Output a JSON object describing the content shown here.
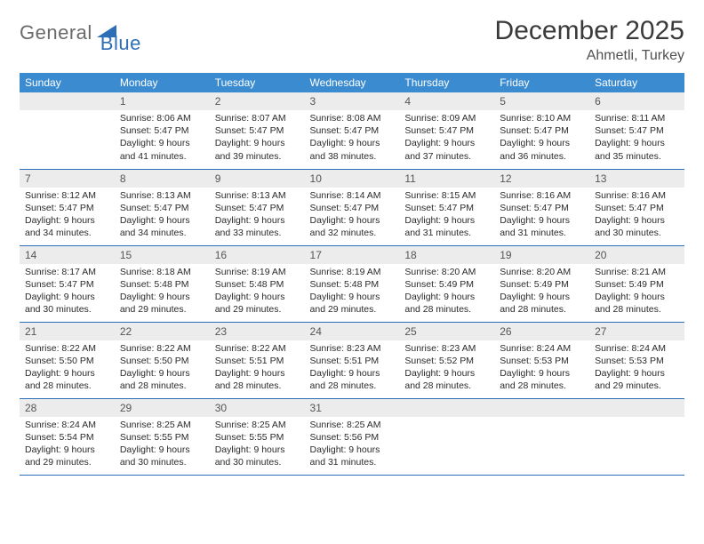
{
  "logo": {
    "text1": "General",
    "text2": "Blue"
  },
  "title": "December 2025",
  "location": "Ahmetli, Turkey",
  "colors": {
    "header_bg": "#3b8bd0",
    "header_fg": "#ffffff",
    "daynum_bg": "#ececec",
    "daynum_fg": "#555555",
    "border": "#2d6fb6",
    "logo_gray": "#6a6a6a",
    "logo_blue": "#2d6fb6",
    "shape_fill": "#2d6fb6"
  },
  "day_headers": [
    "Sunday",
    "Monday",
    "Tuesday",
    "Wednesday",
    "Thursday",
    "Friday",
    "Saturday"
  ],
  "weeks": [
    [
      {
        "n": "",
        "lines": []
      },
      {
        "n": "1",
        "lines": [
          "Sunrise: 8:06 AM",
          "Sunset: 5:47 PM",
          "Daylight: 9 hours",
          "and 41 minutes."
        ]
      },
      {
        "n": "2",
        "lines": [
          "Sunrise: 8:07 AM",
          "Sunset: 5:47 PM",
          "Daylight: 9 hours",
          "and 39 minutes."
        ]
      },
      {
        "n": "3",
        "lines": [
          "Sunrise: 8:08 AM",
          "Sunset: 5:47 PM",
          "Daylight: 9 hours",
          "and 38 minutes."
        ]
      },
      {
        "n": "4",
        "lines": [
          "Sunrise: 8:09 AM",
          "Sunset: 5:47 PM",
          "Daylight: 9 hours",
          "and 37 minutes."
        ]
      },
      {
        "n": "5",
        "lines": [
          "Sunrise: 8:10 AM",
          "Sunset: 5:47 PM",
          "Daylight: 9 hours",
          "and 36 minutes."
        ]
      },
      {
        "n": "6",
        "lines": [
          "Sunrise: 8:11 AM",
          "Sunset: 5:47 PM",
          "Daylight: 9 hours",
          "and 35 minutes."
        ]
      }
    ],
    [
      {
        "n": "7",
        "lines": [
          "Sunrise: 8:12 AM",
          "Sunset: 5:47 PM",
          "Daylight: 9 hours",
          "and 34 minutes."
        ]
      },
      {
        "n": "8",
        "lines": [
          "Sunrise: 8:13 AM",
          "Sunset: 5:47 PM",
          "Daylight: 9 hours",
          "and 34 minutes."
        ]
      },
      {
        "n": "9",
        "lines": [
          "Sunrise: 8:13 AM",
          "Sunset: 5:47 PM",
          "Daylight: 9 hours",
          "and 33 minutes."
        ]
      },
      {
        "n": "10",
        "lines": [
          "Sunrise: 8:14 AM",
          "Sunset: 5:47 PM",
          "Daylight: 9 hours",
          "and 32 minutes."
        ]
      },
      {
        "n": "11",
        "lines": [
          "Sunrise: 8:15 AM",
          "Sunset: 5:47 PM",
          "Daylight: 9 hours",
          "and 31 minutes."
        ]
      },
      {
        "n": "12",
        "lines": [
          "Sunrise: 8:16 AM",
          "Sunset: 5:47 PM",
          "Daylight: 9 hours",
          "and 31 minutes."
        ]
      },
      {
        "n": "13",
        "lines": [
          "Sunrise: 8:16 AM",
          "Sunset: 5:47 PM",
          "Daylight: 9 hours",
          "and 30 minutes."
        ]
      }
    ],
    [
      {
        "n": "14",
        "lines": [
          "Sunrise: 8:17 AM",
          "Sunset: 5:47 PM",
          "Daylight: 9 hours",
          "and 30 minutes."
        ]
      },
      {
        "n": "15",
        "lines": [
          "Sunrise: 8:18 AM",
          "Sunset: 5:48 PM",
          "Daylight: 9 hours",
          "and 29 minutes."
        ]
      },
      {
        "n": "16",
        "lines": [
          "Sunrise: 8:19 AM",
          "Sunset: 5:48 PM",
          "Daylight: 9 hours",
          "and 29 minutes."
        ]
      },
      {
        "n": "17",
        "lines": [
          "Sunrise: 8:19 AM",
          "Sunset: 5:48 PM",
          "Daylight: 9 hours",
          "and 29 minutes."
        ]
      },
      {
        "n": "18",
        "lines": [
          "Sunrise: 8:20 AM",
          "Sunset: 5:49 PM",
          "Daylight: 9 hours",
          "and 28 minutes."
        ]
      },
      {
        "n": "19",
        "lines": [
          "Sunrise: 8:20 AM",
          "Sunset: 5:49 PM",
          "Daylight: 9 hours",
          "and 28 minutes."
        ]
      },
      {
        "n": "20",
        "lines": [
          "Sunrise: 8:21 AM",
          "Sunset: 5:49 PM",
          "Daylight: 9 hours",
          "and 28 minutes."
        ]
      }
    ],
    [
      {
        "n": "21",
        "lines": [
          "Sunrise: 8:22 AM",
          "Sunset: 5:50 PM",
          "Daylight: 9 hours",
          "and 28 minutes."
        ]
      },
      {
        "n": "22",
        "lines": [
          "Sunrise: 8:22 AM",
          "Sunset: 5:50 PM",
          "Daylight: 9 hours",
          "and 28 minutes."
        ]
      },
      {
        "n": "23",
        "lines": [
          "Sunrise: 8:22 AM",
          "Sunset: 5:51 PM",
          "Daylight: 9 hours",
          "and 28 minutes."
        ]
      },
      {
        "n": "24",
        "lines": [
          "Sunrise: 8:23 AM",
          "Sunset: 5:51 PM",
          "Daylight: 9 hours",
          "and 28 minutes."
        ]
      },
      {
        "n": "25",
        "lines": [
          "Sunrise: 8:23 AM",
          "Sunset: 5:52 PM",
          "Daylight: 9 hours",
          "and 28 minutes."
        ]
      },
      {
        "n": "26",
        "lines": [
          "Sunrise: 8:24 AM",
          "Sunset: 5:53 PM",
          "Daylight: 9 hours",
          "and 28 minutes."
        ]
      },
      {
        "n": "27",
        "lines": [
          "Sunrise: 8:24 AM",
          "Sunset: 5:53 PM",
          "Daylight: 9 hours",
          "and 29 minutes."
        ]
      }
    ],
    [
      {
        "n": "28",
        "lines": [
          "Sunrise: 8:24 AM",
          "Sunset: 5:54 PM",
          "Daylight: 9 hours",
          "and 29 minutes."
        ]
      },
      {
        "n": "29",
        "lines": [
          "Sunrise: 8:25 AM",
          "Sunset: 5:55 PM",
          "Daylight: 9 hours",
          "and 30 minutes."
        ]
      },
      {
        "n": "30",
        "lines": [
          "Sunrise: 8:25 AM",
          "Sunset: 5:55 PM",
          "Daylight: 9 hours",
          "and 30 minutes."
        ]
      },
      {
        "n": "31",
        "lines": [
          "Sunrise: 8:25 AM",
          "Sunset: 5:56 PM",
          "Daylight: 9 hours",
          "and 31 minutes."
        ]
      },
      {
        "n": "",
        "lines": []
      },
      {
        "n": "",
        "lines": []
      },
      {
        "n": "",
        "lines": []
      }
    ]
  ]
}
